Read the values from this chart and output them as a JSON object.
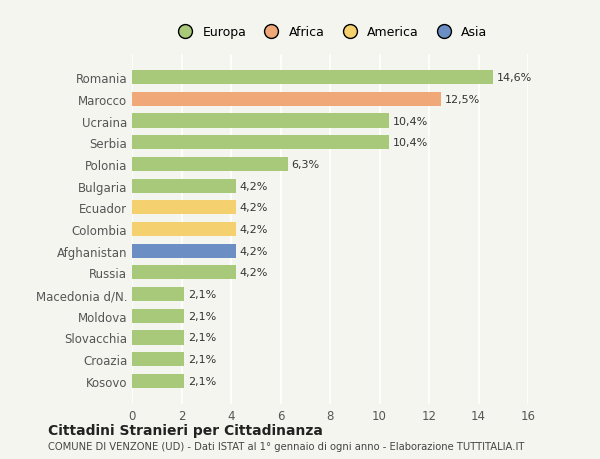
{
  "countries": [
    "Kosovo",
    "Croazia",
    "Slovacchia",
    "Moldova",
    "Macedonia d/N.",
    "Russia",
    "Afghanistan",
    "Colombia",
    "Ecuador",
    "Bulgaria",
    "Polonia",
    "Serbia",
    "Ucraina",
    "Marocco",
    "Romania"
  ],
  "values": [
    2.1,
    2.1,
    2.1,
    2.1,
    2.1,
    4.2,
    4.2,
    4.2,
    4.2,
    4.2,
    6.3,
    10.4,
    10.4,
    12.5,
    14.6
  ],
  "labels": [
    "2,1%",
    "2,1%",
    "2,1%",
    "2,1%",
    "2,1%",
    "4,2%",
    "4,2%",
    "4,2%",
    "4,2%",
    "4,2%",
    "6,3%",
    "10,4%",
    "10,4%",
    "12,5%",
    "14,6%"
  ],
  "colors": [
    "#a8c87a",
    "#a8c87a",
    "#a8c87a",
    "#a8c87a",
    "#a8c87a",
    "#a8c87a",
    "#6b8fc4",
    "#f5d06e",
    "#f5d06e",
    "#a8c87a",
    "#a8c87a",
    "#a8c87a",
    "#a8c87a",
    "#f0a878",
    "#a8c87a"
  ],
  "legend_labels": [
    "Europa",
    "Africa",
    "America",
    "Asia"
  ],
  "legend_colors": [
    "#a8c87a",
    "#f0a878",
    "#f5d06e",
    "#6b8fc4"
  ],
  "xlim": [
    0,
    16
  ],
  "xticks": [
    0,
    2,
    4,
    6,
    8,
    10,
    12,
    14,
    16
  ],
  "title": "Cittadini Stranieri per Cittadinanza",
  "subtitle": "COMUNE DI VENZONE (UD) - Dati ISTAT al 1° gennaio di ogni anno - Elaborazione TUTTITALIA.IT",
  "bg_color": "#f5f5f0",
  "bar_height": 0.65
}
